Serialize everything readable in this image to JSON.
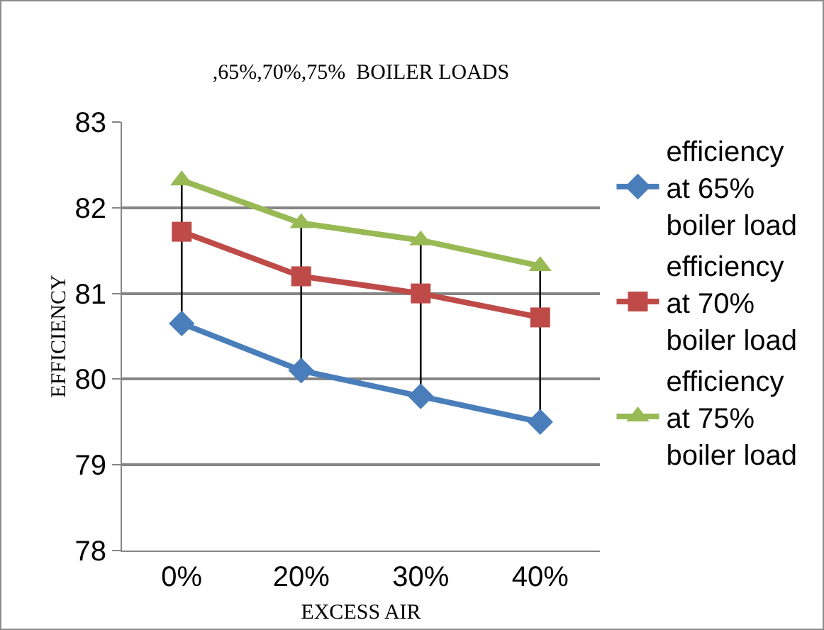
{
  "chart_data": {
    "type": "line",
    "title": ",65%,70%,75%  BOILER LOADS",
    "xlabel": "EXCESS AIR",
    "ylabel": "EFFICIENCY",
    "categories": [
      "0%",
      "20%",
      "30%",
      "40%"
    ],
    "series": [
      {
        "name": "efficiency at 65% boiler load",
        "color": "#4a7ebb",
        "marker": "diamond",
        "values": [
          80.65,
          80.1,
          79.8,
          79.5
        ]
      },
      {
        "name": "efficiency at 70% boiler load",
        "color": "#be4b48",
        "marker": "square",
        "values": [
          81.72,
          81.2,
          81.0,
          80.72
        ]
      },
      {
        "name": "efficiency at 75% boiler load",
        "color": "#98b954",
        "marker": "triangle",
        "values": [
          82.32,
          81.82,
          81.62,
          81.32
        ]
      }
    ],
    "ylim": [
      78,
      83
    ],
    "yticks": [
      78,
      79,
      80,
      81,
      82,
      83
    ],
    "grid": "y",
    "legend": "right"
  }
}
